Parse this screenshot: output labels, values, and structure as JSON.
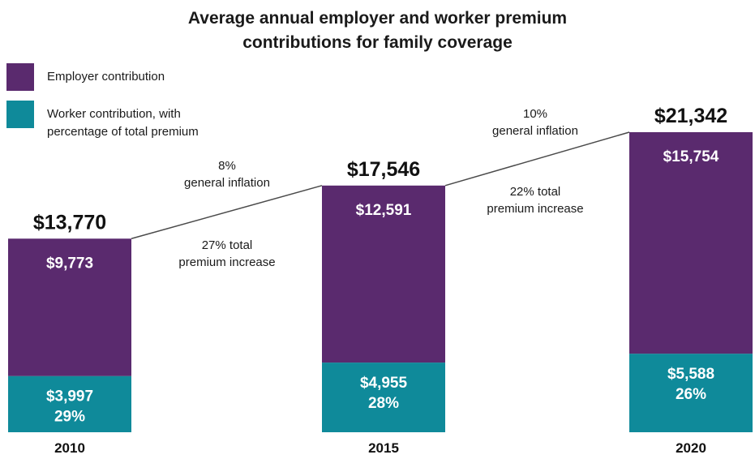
{
  "chart_data": {
    "type": "bar",
    "stacked": true,
    "title_line1": "Average annual employer and worker premium",
    "title_line2": "contributions for family coverage",
    "categories": [
      "2010",
      "2015",
      "2020"
    ],
    "totals": [
      "$13,770",
      "$17,546",
      "$21,342"
    ],
    "total_values": [
      13770,
      17546,
      21342
    ],
    "series": [
      {
        "name": "Employer contribution",
        "color": "#5a2a6e",
        "values": [
          9773,
          12591,
          15754
        ],
        "labels": [
          "$9,773",
          "$12,591",
          "$15,754"
        ]
      },
      {
        "name": "Worker contribution, with percentage of total premium",
        "name_line1": "Worker contribution, with",
        "name_line2": "percentage of total premium",
        "color": "#0f8a9a",
        "values": [
          3997,
          4955,
          5588
        ],
        "labels": [
          "$3,997",
          "$4,955",
          "$5,588"
        ],
        "percent_labels": [
          "29%",
          "28%",
          "26%"
        ]
      }
    ],
    "annotations": [
      {
        "line1": "8%",
        "line2": "general inflation"
      },
      {
        "line1": "27% total",
        "line2": "premium increase"
      },
      {
        "line1": "10%",
        "line2": "general inflation"
      },
      {
        "line1": "22% total",
        "line2": "premium increase"
      }
    ],
    "ylim": [
      0,
      21342
    ],
    "legend_position": "top-left",
    "grid": false
  }
}
